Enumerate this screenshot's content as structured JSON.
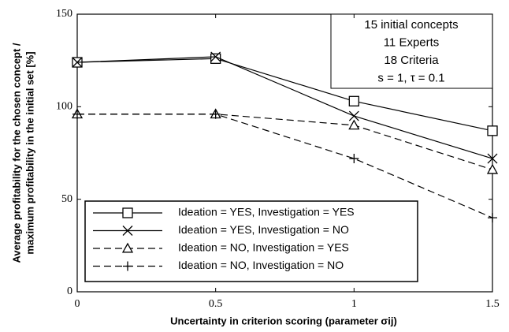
{
  "chart_data": {
    "type": "line",
    "x_label": "Uncertainty in criterion scoring (parameter σij)",
    "y_label": [
      "Average profitability for the chosen concept /",
      "maximum profitability in the initial set [%]"
    ],
    "annotation": [
      "15 initial concepts",
      "11 Experts",
      "18 Criteria",
      "s = 1, τ = 0.1"
    ],
    "x": [
      0,
      0.5,
      1,
      1.5
    ],
    "xlim": [
      0,
      1.5
    ],
    "xticks": [
      0,
      0.5,
      1,
      1.5
    ],
    "ylim": [
      0,
      150
    ],
    "yticks": [
      0,
      50,
      100,
      150
    ],
    "grid": false,
    "legend": "lower left",
    "series": [
      {
        "name": "Ideation = YES, Investigation = YES",
        "color": "#000000",
        "marker": "square",
        "dashed": false,
        "values": [
          124,
          126,
          103,
          87
        ]
      },
      {
        "name": "Ideation = YES, Investigation = NO",
        "color": "#000000",
        "marker": "cross",
        "dashed": false,
        "values": [
          124,
          127,
          95,
          72
        ]
      },
      {
        "name": "Ideation = NO, Investigation = YES",
        "color": "#000000",
        "marker": "triangle",
        "dashed": true,
        "values": [
          96,
          96,
          90,
          66
        ]
      },
      {
        "name": "Ideation = NO, Investigation = NO",
        "color": "#000000",
        "marker": "plus",
        "dashed": true,
        "values": [
          96,
          96,
          72,
          40
        ]
      }
    ]
  }
}
